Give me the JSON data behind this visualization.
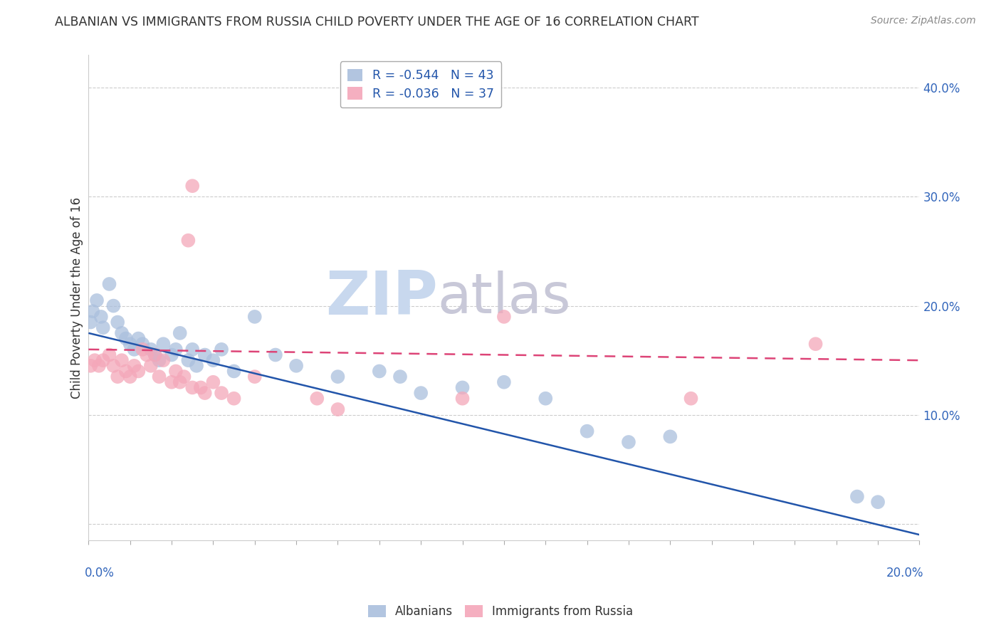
{
  "title": "ALBANIAN VS IMMIGRANTS FROM RUSSIA CHILD POVERTY UNDER THE AGE OF 16 CORRELATION CHART",
  "source": "Source: ZipAtlas.com",
  "ylabel": "Child Poverty Under the Age of 16",
  "watermark_zip": "ZIP",
  "watermark_atlas": "atlas",
  "legend_line1": "R = -0.544   N = 43",
  "legend_line2": "R = -0.036   N = 37",
  "legend_labels": [
    "Albanians",
    "Immigrants from Russia"
  ],
  "xlim": [
    0.0,
    20.0
  ],
  "ylim_min": -1.5,
  "ylim_max": 43.0,
  "yticks": [
    0,
    10,
    20,
    30,
    40
  ],
  "ytick_labels": [
    "",
    "10.0%",
    "20.0%",
    "30.0%",
    "40.0%"
  ],
  "blue_scatter_x": [
    0.05,
    0.1,
    0.2,
    0.3,
    0.35,
    0.5,
    0.6,
    0.7,
    0.8,
    0.9,
    1.0,
    1.1,
    1.2,
    1.3,
    1.5,
    1.6,
    1.7,
    1.8,
    2.0,
    2.1,
    2.2,
    2.4,
    2.5,
    2.6,
    2.8,
    3.0,
    3.2,
    3.5,
    4.0,
    4.5,
    5.0,
    6.0,
    7.0,
    7.5,
    8.0,
    9.0,
    10.0,
    11.0,
    12.0,
    13.0,
    14.0,
    18.5,
    19.0
  ],
  "blue_scatter_y": [
    18.5,
    19.5,
    20.5,
    19.0,
    18.0,
    22.0,
    20.0,
    18.5,
    17.5,
    17.0,
    16.5,
    16.0,
    17.0,
    16.5,
    16.0,
    15.5,
    15.0,
    16.5,
    15.5,
    16.0,
    17.5,
    15.0,
    16.0,
    14.5,
    15.5,
    15.0,
    16.0,
    14.0,
    19.0,
    15.5,
    14.5,
    13.5,
    14.0,
    13.5,
    12.0,
    12.5,
    13.0,
    11.5,
    8.5,
    7.5,
    8.0,
    2.5,
    2.0
  ],
  "pink_scatter_x": [
    0.05,
    0.15,
    0.25,
    0.35,
    0.5,
    0.6,
    0.7,
    0.8,
    0.9,
    1.0,
    1.1,
    1.2,
    1.3,
    1.4,
    1.5,
    1.6,
    1.7,
    1.8,
    2.0,
    2.1,
    2.2,
    2.3,
    2.5,
    2.7,
    2.8,
    3.0,
    3.2,
    3.5,
    4.0,
    5.5,
    6.0,
    9.0,
    10.0,
    14.5,
    17.5,
    2.4,
    2.5
  ],
  "pink_scatter_y": [
    14.5,
    15.0,
    14.5,
    15.0,
    15.5,
    14.5,
    13.5,
    15.0,
    14.0,
    13.5,
    14.5,
    14.0,
    16.0,
    15.5,
    14.5,
    15.5,
    13.5,
    15.0,
    13.0,
    14.0,
    13.0,
    13.5,
    12.5,
    12.5,
    12.0,
    13.0,
    12.0,
    11.5,
    13.5,
    11.5,
    10.5,
    11.5,
    19.0,
    11.5,
    16.5,
    26.0,
    31.0
  ],
  "blue_line_x": [
    0.0,
    20.0
  ],
  "blue_line_y": [
    17.5,
    -1.0
  ],
  "pink_line_x": [
    0.0,
    20.0
  ],
  "pink_line_y": [
    16.0,
    15.0
  ],
  "title_color": "#333333",
  "blue_scatter_color": "#aabfdd",
  "pink_scatter_color": "#f4a7b9",
  "blue_line_color": "#2255aa",
  "pink_line_color": "#dd4477",
  "legend_text_color": "#2255aa",
  "grid_color": "#cccccc",
  "background_color": "#ffffff",
  "watermark_color_zip": "#c8d8ee",
  "watermark_color_atlas": "#c8c8d8",
  "source_color": "#888888",
  "right_tick_color": "#3366bb"
}
